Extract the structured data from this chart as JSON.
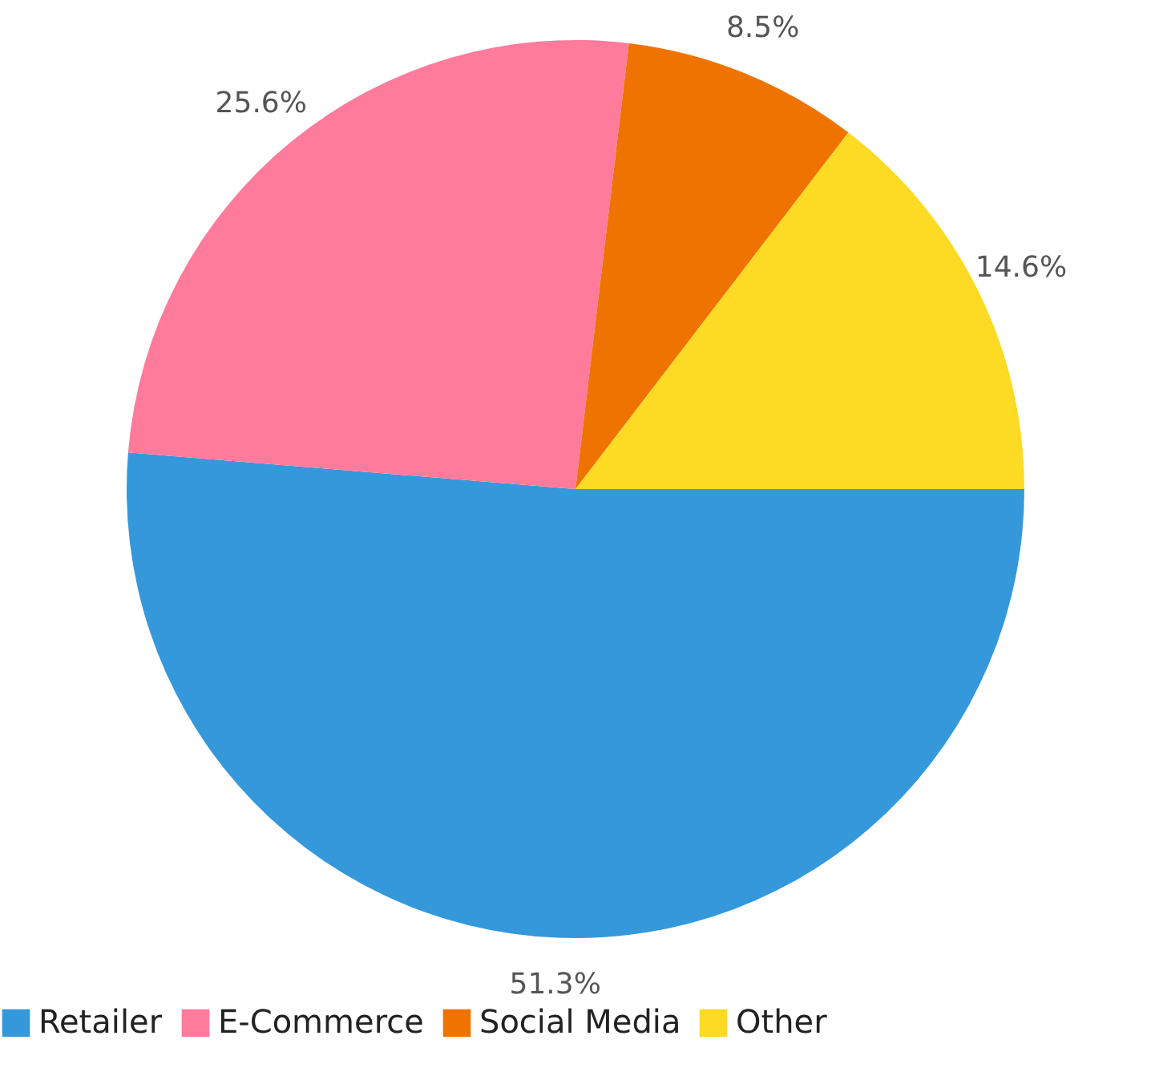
{
  "chart_data": {
    "type": "pie",
    "categories": [
      "Retailer",
      "E-Commerce",
      "Social Media",
      "Other"
    ],
    "values": [
      51.3,
      25.6,
      8.5,
      14.6
    ],
    "colors": [
      "#3498db",
      "#ff7b9b",
      "#ef7300",
      "#fdda24"
    ],
    "value_labels": [
      "51.3%",
      "25.6%",
      "8.5%",
      "14.6%"
    ],
    "legend": "bottom"
  }
}
